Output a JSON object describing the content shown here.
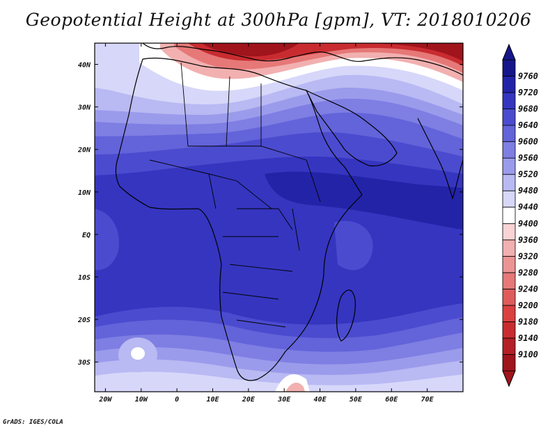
{
  "title": "Geopotential Height at 300hPa [gpm], VT: 2018010206",
  "credit": "GrADS: IGES/COLA",
  "map": {
    "lon_range": [
      -23,
      80
    ],
    "lat_range": [
      -37,
      45
    ],
    "lon_ticks": [
      {
        "value": -20,
        "label": "20W"
      },
      {
        "value": -10,
        "label": "10W"
      },
      {
        "value": 0,
        "label": "0"
      },
      {
        "value": 10,
        "label": "10E"
      },
      {
        "value": 20,
        "label": "20E"
      },
      {
        "value": 30,
        "label": "30E"
      },
      {
        "value": 40,
        "label": "40E"
      },
      {
        "value": 50,
        "label": "50E"
      },
      {
        "value": 60,
        "label": "60E"
      },
      {
        "value": 70,
        "label": "70E"
      }
    ],
    "lat_ticks": [
      {
        "value": 40,
        "label": "40N"
      },
      {
        "value": 30,
        "label": "30N"
      },
      {
        "value": 20,
        "label": "20N"
      },
      {
        "value": 10,
        "label": "10N"
      },
      {
        "value": 0,
        "label": "EQ"
      },
      {
        "value": -10,
        "label": "10S"
      },
      {
        "value": -20,
        "label": "20S"
      },
      {
        "value": -30,
        "label": "30S"
      }
    ]
  },
  "colorbar": {
    "levels": [
      9100,
      9140,
      9180,
      9200,
      9240,
      9280,
      9320,
      9360,
      9400,
      9440,
      9480,
      9520,
      9560,
      9600,
      9640,
      9680,
      9720,
      9760
    ],
    "labels": [
      "9100",
      "9140",
      "9180",
      "9200",
      "9240",
      "9280",
      "9320",
      "9360",
      "9400",
      "9440",
      "9480",
      "9520",
      "9560",
      "9600",
      "9640",
      "9680",
      "9720",
      "9760"
    ],
    "colors": [
      "#a0141c",
      "#b51f26",
      "#c82c30",
      "#db4040",
      "#e05c5c",
      "#e67878",
      "#ec9494",
      "#f2b0b0",
      "#f8d4d4",
      "#ffffff",
      "#d7d7fa",
      "#b9b9f3",
      "#9b9bec",
      "#7e7ee3",
      "#6363da",
      "#4b4bcf",
      "#3535c0",
      "#2323a8",
      "#16168a"
    ],
    "top_arrow_color": "#16168a",
    "bottom_arrow_color": "#a0141c"
  }
}
